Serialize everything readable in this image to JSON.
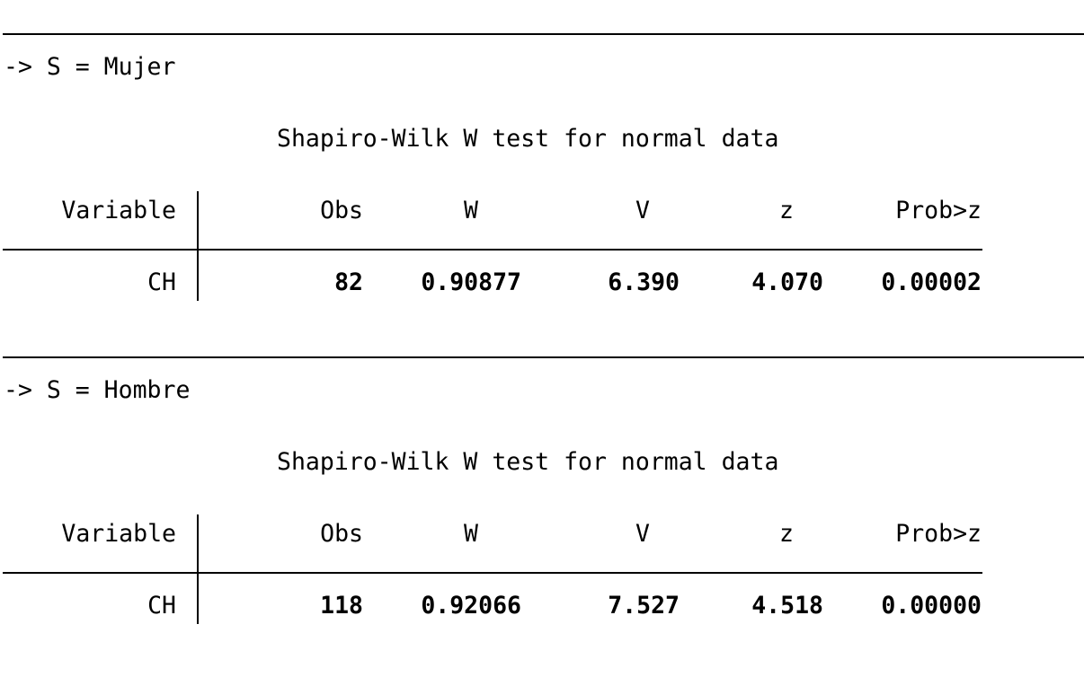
{
  "sections": [
    {
      "group_label": "-> S = Mujer",
      "title": "Shapiro-Wilk W test for normal data",
      "headers": [
        "Variable",
        "Obs",
        "W",
        "V",
        "z",
        "Prob>z"
      ],
      "row": {
        "variable": "CH",
        "obs": "82",
        "w": "0.90877",
        "v": "6.390",
        "z": "4.070",
        "prob": "0.00002"
      }
    },
    {
      "group_label": "-> S = Hombre",
      "title": "Shapiro-Wilk W test for normal data",
      "headers": [
        "Variable",
        "Obs",
        "W",
        "V",
        "z",
        "Prob>z"
      ],
      "row": {
        "variable": "CH",
        "obs": "118",
        "w": "0.92066",
        "v": "7.527",
        "z": "4.518",
        "prob": "0.00000"
      }
    }
  ]
}
